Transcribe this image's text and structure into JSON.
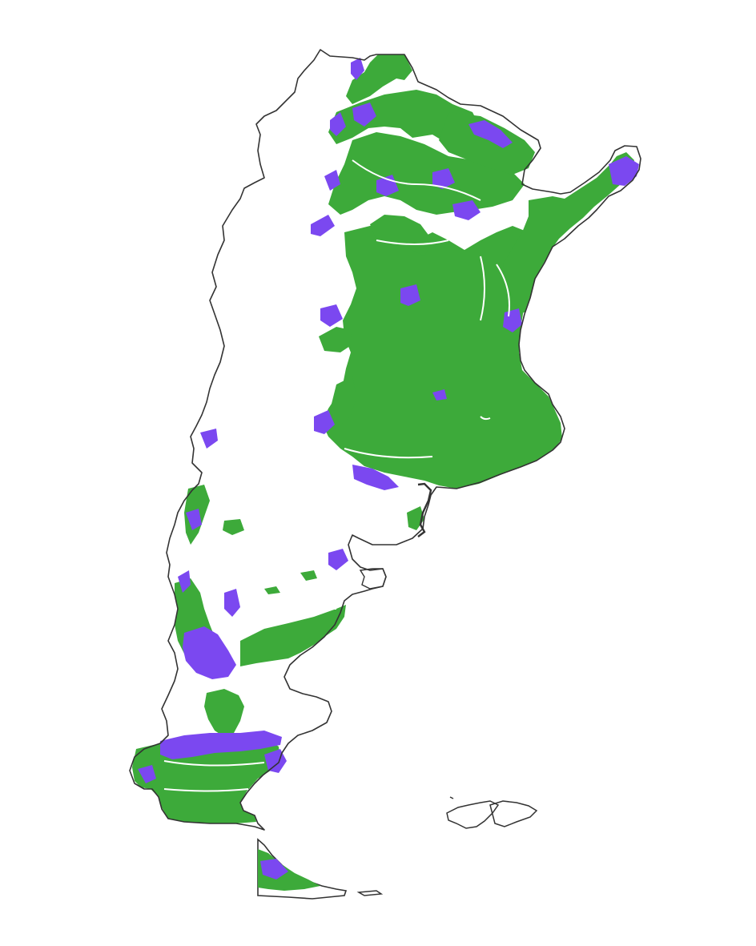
{
  "map": {
    "colors": {
      "background": "#ffffff",
      "border": "#333333",
      "class_green": "#3daa3a",
      "class_purple": "#7b48f0"
    },
    "layers": [
      "country-outline",
      "green-class-areas",
      "purple-class-areas",
      "falkland-islands-outline"
    ]
  }
}
